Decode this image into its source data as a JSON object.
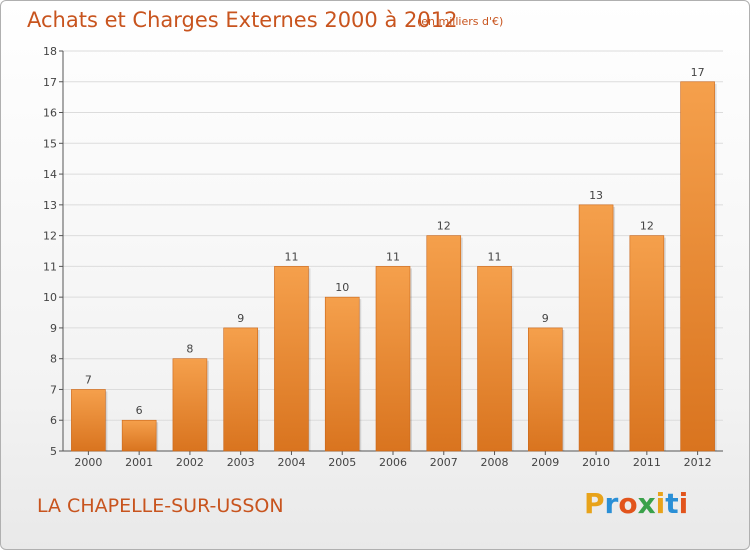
{
  "header": {
    "title": "Achats et Charges Externes 2000 à 2012",
    "subtitle": "(en milliers d'€)"
  },
  "footer": {
    "place": "LA CHAPELLE-SUR-USSON",
    "logo_letters": [
      "P",
      "r",
      "o",
      "x",
      "i",
      "t",
      "i"
    ],
    "logo_colors": [
      "#e8a31a",
      "#2a8fd6",
      "#e2541c",
      "#3aa14a",
      "#e8a31a",
      "#2a8fd6",
      "#e2541c"
    ]
  },
  "chart_data": {
    "type": "bar",
    "title": "Achats et Charges Externes 2000 à 2012",
    "subtitle": "(en milliers d'€)",
    "categories": [
      "2000",
      "2001",
      "2002",
      "2003",
      "2004",
      "2005",
      "2006",
      "2007",
      "2008",
      "2009",
      "2010",
      "2011",
      "2012"
    ],
    "values": [
      7,
      6,
      8,
      9,
      11,
      10,
      11,
      12,
      11,
      9,
      13,
      12,
      17
    ],
    "ylim": [
      5,
      18
    ],
    "yticks": [
      5,
      6,
      7,
      8,
      9,
      10,
      11,
      12,
      13,
      14,
      15,
      16,
      17,
      18
    ],
    "grid": true,
    "bar_color_top": "#f5a04c",
    "bar_color_bottom": "#d9741f",
    "text_color": "#c8541e"
  }
}
